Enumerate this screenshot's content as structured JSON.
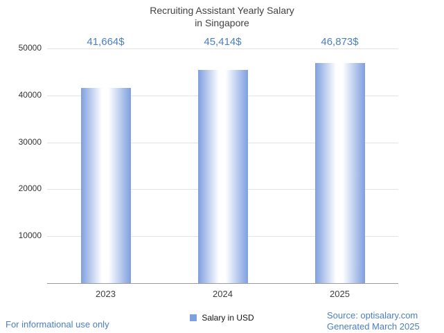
{
  "header": {
    "title_line1": "Recruiting Assistant Yearly Salary",
    "title_line2": "in Singapore"
  },
  "chart_data": {
    "type": "bar",
    "title": "Recruiting Assistant Yearly Salary in Singapore",
    "categories": [
      "2023",
      "2024",
      "2025"
    ],
    "values": [
      41664,
      45414,
      46873
    ],
    "value_labels": [
      "41,664$",
      "45,414$",
      "46,873$"
    ],
    "series_name": "Salary in USD",
    "ylim": [
      0,
      50000
    ],
    "yticks": [
      10000,
      20000,
      30000,
      40000,
      50000
    ],
    "grid": true,
    "legend_position": "bottom"
  },
  "legend": {
    "label": "Salary in USD"
  },
  "footer": {
    "disclaimer": "For informational use only",
    "source": "Source: optisalary.com",
    "generated": "Generated March 2025"
  },
  "colors": {
    "accent_blue": "#4a7ec1",
    "title_gray": "#404040",
    "bar_edge": "#7f9fdf",
    "bar_center": "#ffffff",
    "legend_swatch": "#7da0e0",
    "gridline": "#e3e3e3",
    "axis_line": "#9a9a9a"
  }
}
